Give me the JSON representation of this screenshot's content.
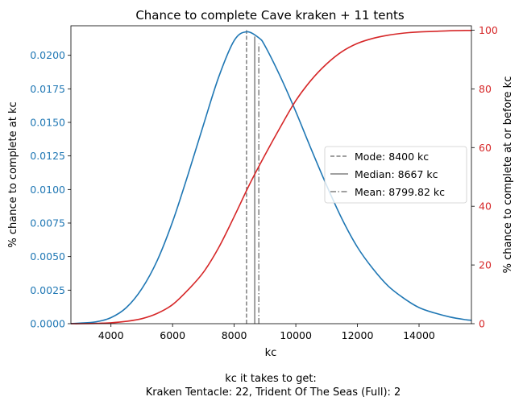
{
  "chart_data": {
    "type": "line",
    "title": "Chance to complete Cave kraken + 11 tents",
    "xlabel": "kc",
    "ylabel_left": "% chance to complete at kc",
    "ylabel_right": "% chance to complete at or before kc",
    "footer": {
      "line1": "kc it takes to get:",
      "line2": "Kraken Tentacle: 22,  Trident Of The Seas (Full): 2"
    },
    "xlim": [
      2700,
      15700
    ],
    "ylim_left": [
      0,
      0.0222
    ],
    "ylim_right": [
      0,
      101.5
    ],
    "xticks": [
      4000,
      6000,
      8000,
      10000,
      12000,
      14000
    ],
    "yticks_left": [
      "0.0000",
      "0.0025",
      "0.0050",
      "0.0075",
      "0.0100",
      "0.0125",
      "0.0150",
      "0.0175",
      "0.0200"
    ],
    "yticks_right": [
      "0",
      "20",
      "40",
      "60",
      "80",
      "100"
    ],
    "colors": {
      "left": "#1f77b4",
      "right": "#d62728",
      "ref": "#808080"
    },
    "legend_position": "center-right",
    "series": [
      {
        "axis": "left",
        "x": [
          2700,
          3000,
          3500,
          4000,
          4500,
          5000,
          5500,
          6000,
          6500,
          7000,
          7500,
          8000,
          8400,
          8800,
          9000,
          9500,
          10000,
          10500,
          11000,
          11500,
          12000,
          12500,
          13000,
          13500,
          14000,
          14500,
          15000,
          15500,
          15700
        ],
        "y": [
          1e-05,
          4e-05,
          0.00013,
          0.00045,
          0.0012,
          0.0026,
          0.0047,
          0.0076,
          0.0111,
          0.0148,
          0.0184,
          0.0211,
          0.02175,
          0.0213,
          0.0207,
          0.0184,
          0.0158,
          0.013,
          0.0103,
          0.0078,
          0.0057,
          0.0041,
          0.0028,
          0.0019,
          0.0012,
          0.0008,
          0.0005,
          0.0003,
          0.00025
        ]
      },
      {
        "axis": "right",
        "x": [
          2700,
          3000,
          3500,
          4000,
          4500,
          5000,
          5500,
          6000,
          6500,
          7000,
          7500,
          8000,
          8500,
          9000,
          9500,
          10000,
          10500,
          11000,
          11500,
          12000,
          12500,
          13000,
          13500,
          14000,
          14500,
          15000,
          15500,
          15700
        ],
        "y": [
          0.0,
          0.0,
          0.1,
          0.3,
          0.8,
          1.7,
          3.5,
          6.5,
          11.5,
          17.5,
          26.0,
          36.5,
          47.5,
          57.5,
          67.0,
          76.0,
          83.0,
          88.5,
          92.7,
          95.5,
          97.2,
          98.3,
          99.0,
          99.4,
          99.6,
          99.8,
          99.9,
          99.9
        ]
      }
    ],
    "reference_lines": [
      {
        "label": "Mode: 8400 kc",
        "x": 8400,
        "style": "dashed"
      },
      {
        "label": "Median: 8667 kc",
        "x": 8667,
        "style": "solid"
      },
      {
        "label": "Mean: 8799.82 kc",
        "x": 8799.82,
        "style": "dashdot"
      }
    ]
  }
}
